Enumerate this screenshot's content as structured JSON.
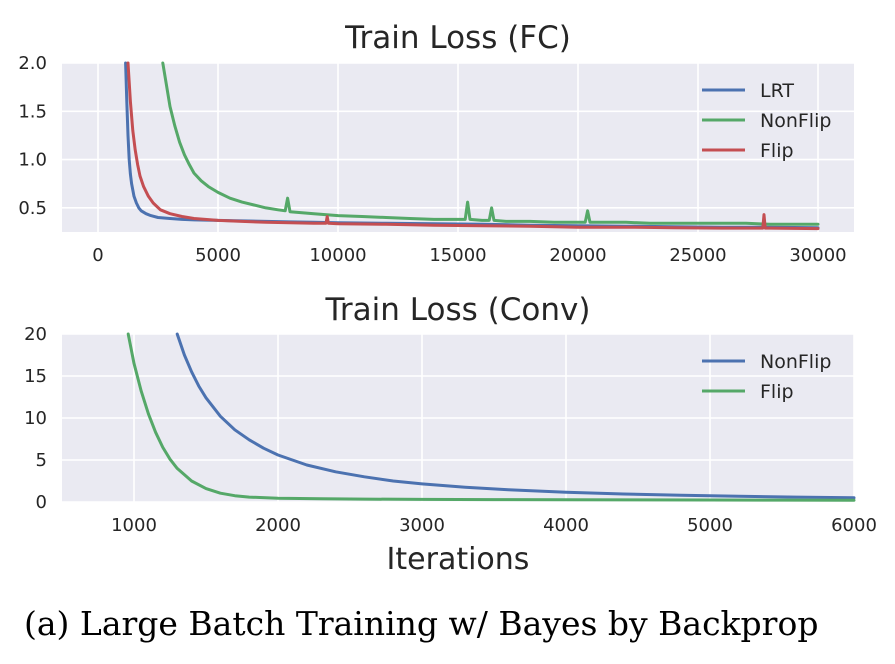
{
  "caption": "(a) Large Batch Training w/ Bayes by Backprop",
  "colors": {
    "plot_bg": "#EAEAF2",
    "grid": "#FFFFFF",
    "blue": "#4C72B0",
    "green": "#55A868",
    "red": "#C44E52"
  },
  "chart_data": [
    {
      "type": "line",
      "title": "Train Loss (FC)",
      "xlabel": "",
      "ylabel": "",
      "xlim": [
        -1500,
        31500
      ],
      "ylim": [
        0.25,
        2.0
      ],
      "xticks": [
        "0",
        "5000",
        "10000",
        "15000",
        "20000",
        "25000",
        "30000"
      ],
      "yticks": [
        "2.0",
        "1.5",
        "1.0",
        "0.5"
      ],
      "grid": true,
      "legend": "top-right",
      "series": [
        {
          "name": "LRT",
          "color": "#4C72B0",
          "x": [
            1150,
            1200,
            1250,
            1300,
            1350,
            1400,
            1500,
            1600,
            1700,
            1800,
            2000,
            2200,
            2500,
            3000,
            3500,
            4000,
            5000,
            6000,
            7000,
            8000,
            9000,
            10000,
            12000,
            14000,
            16000,
            18000,
            20000,
            22000,
            24000,
            26000,
            28000,
            30000
          ],
          "y": [
            2.0,
            1.6,
            1.25,
            1.0,
            0.85,
            0.75,
            0.62,
            0.55,
            0.5,
            0.47,
            0.44,
            0.42,
            0.4,
            0.39,
            0.38,
            0.375,
            0.37,
            0.365,
            0.36,
            0.355,
            0.35,
            0.345,
            0.34,
            0.335,
            0.33,
            0.32,
            0.315,
            0.31,
            0.305,
            0.3,
            0.3,
            0.295
          ]
        },
        {
          "name": "NonFlip",
          "color": "#55A868",
          "x": [
            2700,
            2800,
            2900,
            3000,
            3200,
            3400,
            3600,
            3800,
            4000,
            4300,
            4600,
            5000,
            5500,
            6000,
            6500,
            7000,
            7500,
            7800,
            7900,
            8000,
            8500,
            9000,
            10000,
            11000,
            12000,
            13000,
            14000,
            15000,
            15300,
            15400,
            15500,
            16000,
            16300,
            16400,
            16500,
            17000,
            18000,
            19000,
            20000,
            20300,
            20400,
            20500,
            21000,
            22000,
            23000,
            24000,
            25000,
            26000,
            27000,
            28000,
            29000,
            30000
          ],
          "y": [
            2.0,
            1.85,
            1.7,
            1.55,
            1.35,
            1.18,
            1.05,
            0.95,
            0.86,
            0.78,
            0.72,
            0.66,
            0.6,
            0.56,
            0.53,
            0.5,
            0.48,
            0.47,
            0.6,
            0.46,
            0.45,
            0.44,
            0.42,
            0.41,
            0.4,
            0.39,
            0.38,
            0.38,
            0.38,
            0.56,
            0.38,
            0.37,
            0.37,
            0.5,
            0.37,
            0.36,
            0.36,
            0.35,
            0.35,
            0.35,
            0.47,
            0.35,
            0.35,
            0.35,
            0.34,
            0.34,
            0.34,
            0.34,
            0.34,
            0.33,
            0.33,
            0.33
          ]
        },
        {
          "name": "Flip",
          "color": "#C44E52",
          "x": [
            1250,
            1350,
            1450,
            1550,
            1650,
            1750,
            1900,
            2100,
            2300,
            2600,
            3000,
            3500,
            4000,
            5000,
            6000,
            7000,
            8000,
            9000,
            9500,
            9550,
            9600,
            10000,
            12000,
            14000,
            16000,
            18000,
            20000,
            22000,
            24000,
            26000,
            27700,
            27750,
            27800,
            28000,
            30000
          ],
          "y": [
            2.0,
            1.6,
            1.3,
            1.1,
            0.95,
            0.83,
            0.72,
            0.62,
            0.55,
            0.48,
            0.44,
            0.41,
            0.39,
            0.37,
            0.36,
            0.35,
            0.345,
            0.34,
            0.34,
            0.41,
            0.34,
            0.335,
            0.33,
            0.32,
            0.315,
            0.31,
            0.3,
            0.3,
            0.295,
            0.29,
            0.29,
            0.43,
            0.29,
            0.29,
            0.285
          ]
        }
      ]
    },
    {
      "type": "line",
      "title": "Train Loss (Conv)",
      "xlabel": "Iterations",
      "ylabel": "",
      "xlim": [
        500,
        6000
      ],
      "ylim": [
        0,
        20
      ],
      "xticks": [
        "1000",
        "2000",
        "3000",
        "4000",
        "5000",
        "6000"
      ],
      "yticks": [
        "20",
        "15",
        "10",
        "5",
        "0"
      ],
      "grid": true,
      "legend": "top-right",
      "series": [
        {
          "name": "NonFlip",
          "color": "#4C72B0",
          "x": [
            1300,
            1350,
            1400,
            1450,
            1500,
            1600,
            1700,
            1800,
            1900,
            2000,
            2200,
            2400,
            2600,
            2800,
            3000,
            3300,
            3600,
            4000,
            4400,
            4800,
            5200,
            5600,
            6000
          ],
          "y": [
            20.0,
            17.5,
            15.5,
            13.8,
            12.4,
            10.2,
            8.6,
            7.4,
            6.4,
            5.6,
            4.4,
            3.6,
            3.0,
            2.5,
            2.15,
            1.75,
            1.45,
            1.15,
            0.95,
            0.8,
            0.68,
            0.58,
            0.5
          ]
        },
        {
          "name": "Flip",
          "color": "#55A868",
          "x": [
            960,
            1000,
            1050,
            1100,
            1150,
            1200,
            1250,
            1300,
            1400,
            1500,
            1600,
            1700,
            1800,
            2000,
            2300,
            2600,
            3000,
            3500,
            4000,
            4500,
            5000,
            5500,
            6000
          ],
          "y": [
            20.0,
            16.5,
            13.2,
            10.5,
            8.3,
            6.5,
            5.1,
            4.0,
            2.5,
            1.6,
            1.05,
            0.75,
            0.58,
            0.45,
            0.38,
            0.34,
            0.31,
            0.28,
            0.26,
            0.25,
            0.24,
            0.23,
            0.22
          ]
        }
      ]
    }
  ]
}
